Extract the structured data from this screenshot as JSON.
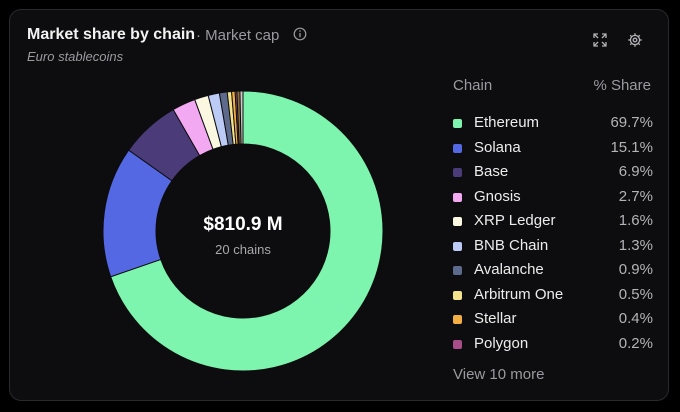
{
  "header": {
    "title": "Market share by chain",
    "metric": "· Market cap",
    "subtitle": "Euro stablecoins",
    "info_icon": "info-icon",
    "expand_icon": "expand-icon",
    "settings_icon": "gear-icon"
  },
  "center": {
    "value": "$810.9 M",
    "count": "20 chains"
  },
  "legend_header": {
    "chain": "Chain",
    "share": "% Share"
  },
  "view_more": "View 10 more",
  "chart_data": {
    "type": "pie",
    "variant": "donut",
    "categories": [
      "Ethereum",
      "Solana",
      "Base",
      "Gnosis",
      "XRP Ledger",
      "BNB Chain",
      "Avalanche",
      "Arbitrum One",
      "Stellar",
      "Polygon"
    ],
    "values": [
      69.7,
      15.1,
      6.9,
      2.7,
      1.6,
      1.3,
      0.9,
      0.5,
      0.4,
      0.2
    ],
    "labels": [
      "69.7%",
      "15.1%",
      "6.9%",
      "2.7%",
      "1.6%",
      "1.3%",
      "0.9%",
      "0.5%",
      "0.4%",
      "0.2%"
    ],
    "colors": [
      "#7ef5ae",
      "#5468e3",
      "#4b3b78",
      "#f2a9f2",
      "#fbf8e2",
      "#bccbf6",
      "#5d6a8c",
      "#f4e38d",
      "#f2ae42",
      "#a64d8a"
    ],
    "other_colors": [
      "#8a6f3a",
      "#c9c9c9"
    ],
    "legend_position": "right"
  }
}
